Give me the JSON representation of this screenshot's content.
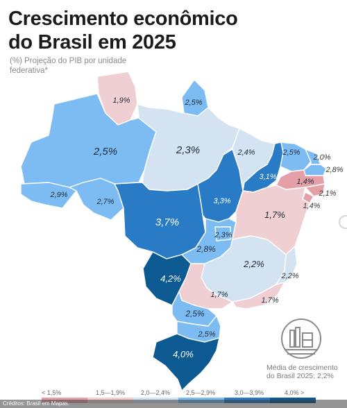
{
  "title": "Crescimento econômico do Brasil em 2025",
  "subtitle": "(%) Projeção do PIB por unidade federativa*",
  "colors": {
    "lt_1_5": "#e3a0a6",
    "r1_5_1_9": "#f0cfd2",
    "r2_0_2_4": "#d3e3f2",
    "r2_5_2_9": "#7dbcf3",
    "r3_0_3_9": "#2a7bc6",
    "ge_4_0": "#0d5a93"
  },
  "states": {
    "RR": "1,9%",
    "AP": "2,5%",
    "AM": "2,5%",
    "PA": "2,3%",
    "AC": "2,9%",
    "RO": "2,7%",
    "MT": "3,7%",
    "TO": "3,3%",
    "MA": "2,4%",
    "PI": "3,1%",
    "CE": "2,5%",
    "RN": "2,0%",
    "PB": "2,8%",
    "PE": "1,4%",
    "AL": "2,1%",
    "SE": "1,4%",
    "BA": "1,7%",
    "GO": "2,8%",
    "DF": "2,3%",
    "MG": "2,2%",
    "ES": "2,2%",
    "MS": "4,2%",
    "SP": "1,7%",
    "RJ": "1,7%",
    "PR": "2,5%",
    "SC": "2,5%",
    "RS": "4,0%"
  },
  "average": "Média de crescimento do Brasil 2025: 2,2%",
  "legend": {
    "labels": [
      "< 1,5%",
      "1,5—1,9%",
      "2,0—2,4%",
      "2,5—2,9%",
      "3,0—3,9%",
      "4,0% >"
    ]
  },
  "credits": "Créditos: Brasil em Mapas."
}
